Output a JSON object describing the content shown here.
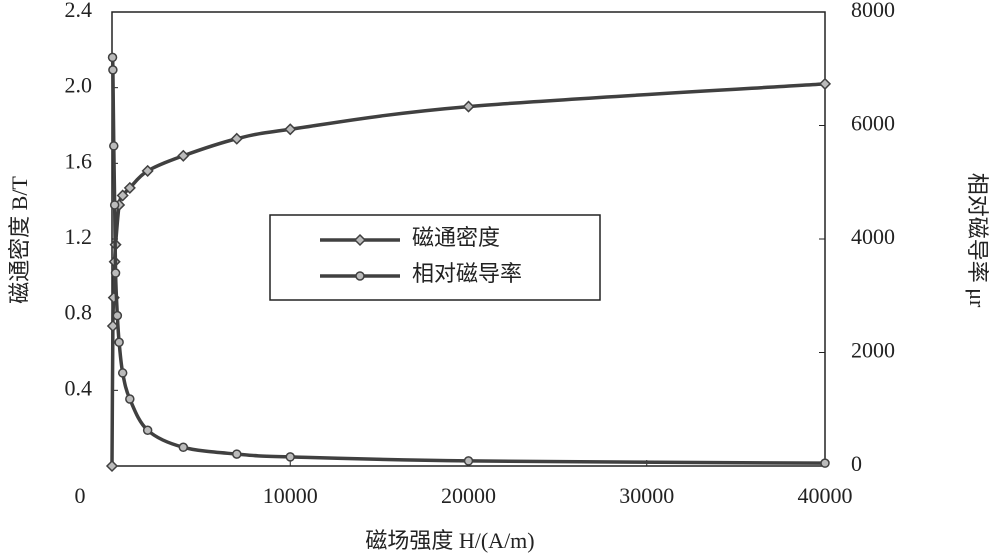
{
  "chart_data": {
    "type": "line",
    "x_label": "磁场强度 H/(A/m)",
    "y_label": "磁通密度 B/T",
    "y2_label": "相对磁导率 μr",
    "xlim": [
      0,
      40000
    ],
    "xticks": [
      0,
      10000,
      20000,
      30000,
      40000
    ],
    "ylim": [
      0,
      2.4
    ],
    "yticks": [
      0.4,
      0.8,
      1.2,
      1.6,
      {
        "value": 2.0,
        "label": "2.0"
      },
      2.4
    ],
    "y2lim": [
      0,
      8000
    ],
    "y2ticks": [
      0,
      2000,
      4000,
      6000,
      8000
    ],
    "legend": "center",
    "series": [
      {
        "name": "磁通密度",
        "color": "#404040",
        "marker": "diamond",
        "x": [
          0,
          50,
          100,
          150,
          200,
          400,
          600,
          1000,
          2000,
          4000,
          7000,
          10000,
          20000,
          40000
        ],
        "values": [
          0,
          0.74,
          0.89,
          1.08,
          1.17,
          1.38,
          1.43,
          1.47,
          1.56,
          1.64,
          1.73,
          1.78,
          1.9,
          2.02
        ]
      },
      {
        "name": "相对磁导率",
        "color": "#404040",
        "marker": "circle",
        "axis": "y2",
        "x": [
          30,
          50,
          100,
          150,
          200,
          300,
          400,
          600,
          1000,
          2000,
          4000,
          7000,
          10000,
          20000,
          40000
        ],
        "values": [
          7200,
          6980,
          5640,
          4600,
          3400,
          2650,
          2180,
          1640,
          1180,
          630,
          330,
          210,
          160,
          90,
          50
        ]
      }
    ]
  }
}
